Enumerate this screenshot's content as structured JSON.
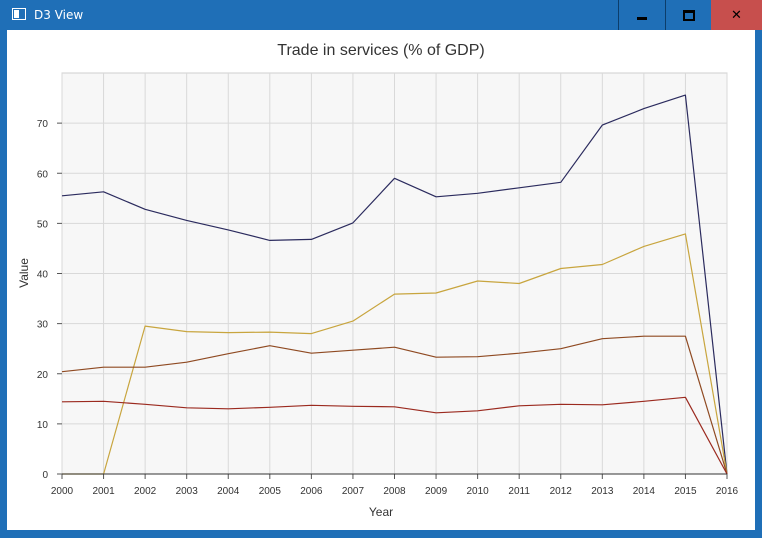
{
  "window": {
    "title": "D3 View",
    "minimize_icon": "minimize-icon",
    "maximize_icon": "maximize-icon",
    "close_icon": "close-icon",
    "close_glyph": "✕"
  },
  "chart_data": {
    "type": "line",
    "title": "Trade in services (% of GDP)",
    "xlabel": "Year",
    "ylabel": "Value",
    "x": [
      2000,
      2001,
      2002,
      2003,
      2004,
      2005,
      2006,
      2007,
      2008,
      2009,
      2010,
      2011,
      2012,
      2013,
      2014,
      2015,
      2016
    ],
    "xlim": [
      2000,
      2016
    ],
    "ylim": [
      0,
      80
    ],
    "yticks": [
      0,
      10,
      20,
      30,
      40,
      50,
      60,
      70
    ],
    "grid": true,
    "legend": "none",
    "series": [
      {
        "color": "#2b2b5e",
        "values": [
          55.5,
          56.3,
          52.8,
          50.6,
          48.7,
          46.6,
          46.8,
          50.1,
          59.0,
          55.3,
          56.0,
          57.1,
          58.2,
          69.6,
          72.9,
          75.6,
          0
        ]
      },
      {
        "color": "#c8a53e",
        "values": [
          0,
          0,
          29.5,
          28.4,
          28.2,
          28.3,
          28.0,
          30.5,
          35.9,
          36.1,
          38.5,
          38.0,
          41.0,
          41.8,
          45.4,
          47.9,
          0
        ]
      },
      {
        "color": "#8f4a22",
        "values": [
          20.4,
          21.3,
          21.3,
          22.3,
          24.0,
          25.6,
          24.1,
          24.7,
          25.3,
          23.3,
          23.4,
          24.1,
          25.0,
          27.0,
          27.5,
          27.5,
          0
        ]
      },
      {
        "color": "#9b2a1f",
        "values": [
          14.4,
          14.5,
          13.9,
          13.2,
          13.0,
          13.3,
          13.7,
          13.5,
          13.4,
          12.2,
          12.6,
          13.6,
          13.9,
          13.8,
          14.5,
          15.3,
          0
        ]
      }
    ]
  }
}
